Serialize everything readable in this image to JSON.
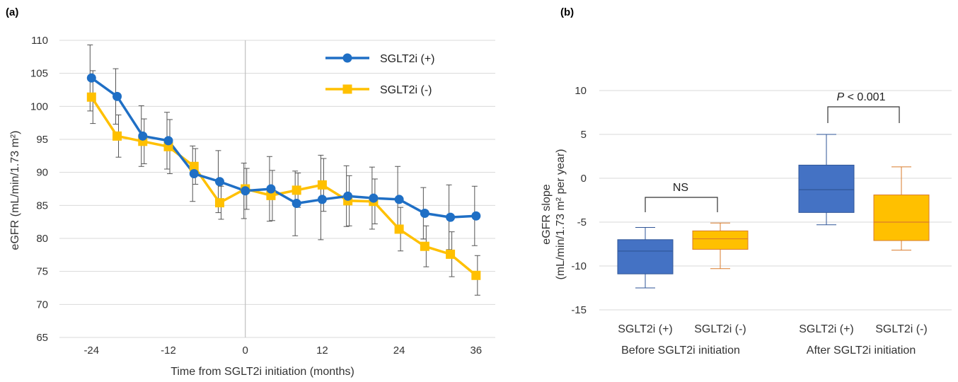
{
  "colors": {
    "blue": "#1f6fc5",
    "gold": "#ffc000",
    "box_blue": "#4472c4",
    "box_gold": "#ffc000",
    "box_gold_line": "#d97b2b",
    "grid": "#d9d9d9",
    "err": "#555555"
  },
  "chart_data": [
    {
      "panel_label": "(a)",
      "type": "line",
      "xlabel": "Time from SGLT2i initiation (months)",
      "ylabel": "eGFR (mL/min/1.73 m²)",
      "xlim": [
        -29,
        39
      ],
      "ylim": [
        65,
        110
      ],
      "xticks": [
        "-24",
        "-12",
        "0",
        "12",
        "24",
        "36"
      ],
      "xtick_values": [
        -24,
        -12,
        0,
        12,
        24,
        36
      ],
      "yticks": [
        "65",
        "70",
        "75",
        "80",
        "85",
        "90",
        "95",
        "100",
        "105",
        "110"
      ],
      "ytick_values": [
        65,
        70,
        75,
        80,
        85,
        90,
        95,
        100,
        105,
        110
      ],
      "grid": "horizontal",
      "vline_at": 0,
      "legend_position": "top-right",
      "series": [
        {
          "name": "SGLT2i (+)",
          "marker": "circle",
          "x": [
            -24,
            -20,
            -16,
            -12,
            -8,
            -4,
            0,
            4,
            8,
            12,
            16,
            20,
            24,
            28,
            32,
            36
          ],
          "y": [
            104.3,
            101.5,
            95.5,
            94.8,
            89.8,
            88.6,
            87.2,
            87.5,
            85.3,
            85.9,
            86.4,
            86.1,
            85.9,
            83.8,
            83.2,
            83.4
          ],
          "err_upper": [
            109.3,
            105.7,
            100.1,
            99.1,
            94.0,
            93.3,
            91.4,
            92.4,
            90.2,
            92.6,
            91.0,
            90.8,
            90.9,
            87.7,
            88.1,
            87.9
          ],
          "err_lower": [
            99.3,
            97.3,
            90.9,
            90.5,
            85.6,
            83.9,
            83.0,
            82.6,
            80.4,
            79.8,
            81.8,
            81.4,
            80.9,
            79.9,
            78.3,
            78.9
          ]
        },
        {
          "name": "SGLT2i (-)",
          "marker": "square",
          "x": [
            -24,
            -20,
            -16,
            -12,
            -8,
            -4,
            0,
            4,
            8,
            12,
            16,
            20,
            24,
            28,
            32,
            36
          ],
          "y": [
            101.4,
            95.5,
            94.7,
            93.9,
            90.9,
            85.4,
            87.5,
            86.5,
            87.3,
            88.1,
            85.7,
            85.6,
            81.4,
            78.8,
            77.6,
            74.4
          ],
          "err_upper": [
            105.4,
            98.7,
            98.1,
            98.0,
            93.6,
            87.9,
            90.6,
            90.3,
            89.9,
            92.1,
            89.5,
            89.0,
            84.7,
            81.9,
            81.0,
            77.4
          ],
          "err_lower": [
            97.4,
            92.3,
            91.3,
            89.8,
            88.2,
            82.9,
            84.4,
            82.7,
            84.7,
            84.1,
            81.9,
            82.2,
            78.1,
            75.7,
            74.2,
            71.4
          ]
        }
      ]
    },
    {
      "panel_label": "(b)",
      "type": "box",
      "ylabel_line1": "eGFR slope",
      "ylabel_line2": "(mL/min/1.73 m² per year)",
      "ylim": [
        -15,
        10
      ],
      "yticks": [
        "-15",
        "-10",
        "-5",
        "0",
        "5",
        "10"
      ],
      "ytick_values": [
        -15,
        -10,
        -5,
        0,
        5,
        10
      ],
      "grid": "horizontal",
      "groups": [
        {
          "label": "Before SGLT2i initiation",
          "annotation": "NS",
          "boxes": [
            {
              "name": "SGLT2i (+)",
              "min": -12.5,
              "q1": -10.9,
              "median": -8.3,
              "q3": -7.0,
              "max": -5.6
            },
            {
              "name": "SGLT2i (-)",
              "min": -10.3,
              "q1": -8.1,
              "median": -6.9,
              "q3": -6.0,
              "max": -5.1
            }
          ]
        },
        {
          "label": "After SGLT2i initiation",
          "annotation_p": "P",
          "annotation_rest": " < 0.001",
          "boxes": [
            {
              "name": "SGLT2i (+)",
              "min": -5.3,
              "q1": -3.9,
              "median": -1.3,
              "q3": 1.5,
              "max": 5.0
            },
            {
              "name": "SGLT2i (-)",
              "min": -8.2,
              "q1": -7.1,
              "median": -5.0,
              "q3": -1.9,
              "max": 1.3
            }
          ]
        }
      ]
    }
  ]
}
